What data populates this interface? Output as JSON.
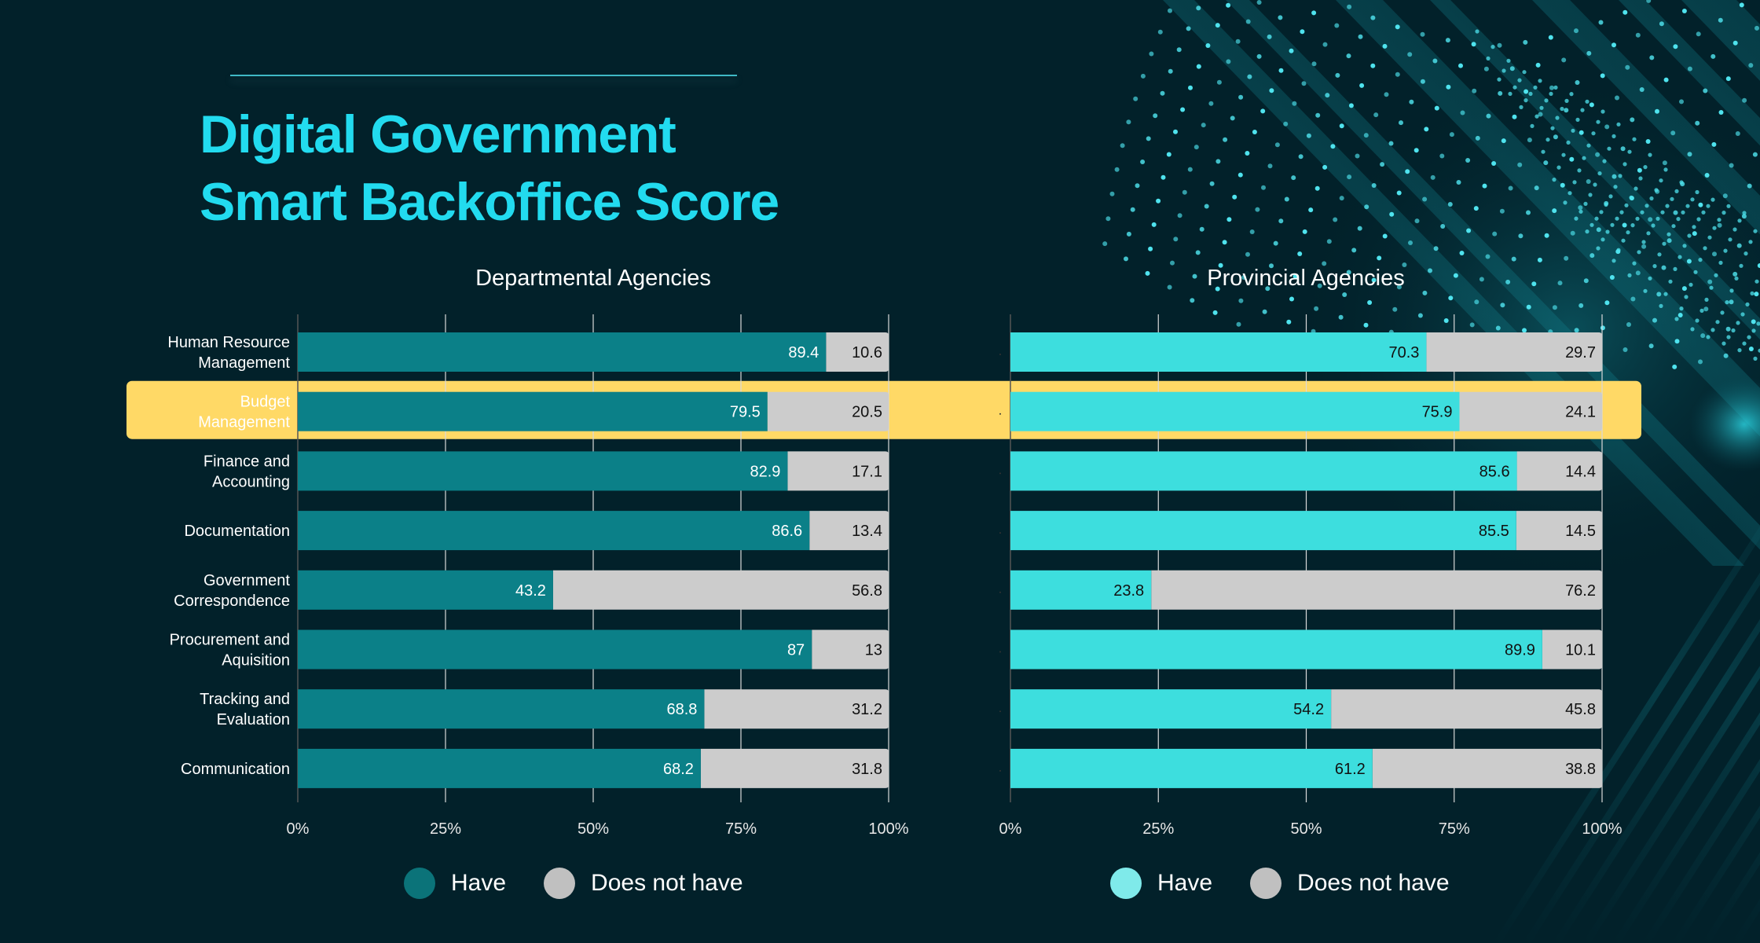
{
  "title": {
    "line1": "Digital Government",
    "line2": "Smart Backoffice Score"
  },
  "colors": {
    "background": "#02212a",
    "title": "#22dbef",
    "highlight": "#ffd966",
    "gray": "#cccccc",
    "departmental_have": "#0b8088",
    "provincial_have": "#3ddede",
    "legend_departmental_have": "#0b7379",
    "legend_provincial_have": "#7feaea",
    "legend_does_not_have": "#c0c0c0"
  },
  "highlighted_category": "Budget Management",
  "chart_data": [
    {
      "type": "bar",
      "orientation": "horizontal",
      "stacked": "percent",
      "title": "Departmental Agencies",
      "categories": [
        "Human Resource Management",
        "Budget Management",
        "Finance and Accounting",
        "Documentation",
        "Government Correspondence",
        "Procurement and Aquisition",
        "Tracking and Evaluation",
        "Communication"
      ],
      "category_labels": [
        [
          "Human Resource",
          "Management"
        ],
        [
          "Budget",
          "Management"
        ],
        [
          "Finance and",
          "Accounting"
        ],
        [
          "Documentation"
        ],
        [
          "Government",
          "Correspondence"
        ],
        [
          "Procurement and",
          "Aquisition"
        ],
        [
          "Tracking and",
          "Evaluation"
        ],
        [
          "Communication"
        ]
      ],
      "series": [
        {
          "name": "Have",
          "values": [
            89.4,
            79.5,
            82.9,
            86.6,
            43.2,
            87,
            68.8,
            68.2
          ],
          "labels": [
            "89.4",
            "79.5",
            "82.9",
            "86.6",
            "43.2",
            "87",
            "68.8",
            "68.2"
          ]
        },
        {
          "name": "Does not have",
          "values": [
            10.6,
            20.5,
            17.1,
            13.4,
            56.8,
            13,
            31.2,
            31.8
          ],
          "labels": [
            "10.6",
            "20.5",
            "17.1",
            "13.4",
            "56.8",
            "13",
            "31.2",
            "31.8"
          ]
        }
      ],
      "xlim": [
        0,
        100
      ],
      "xticks": [
        "0%",
        "25%",
        "50%",
        "75%",
        "100%"
      ],
      "grid": true,
      "legend": {
        "position": "bottom",
        "entries": [
          "Have",
          "Does not have"
        ]
      }
    },
    {
      "type": "bar",
      "orientation": "horizontal",
      "stacked": "percent",
      "title": "Provincial Agencies",
      "categories": [
        "Human Resource Management",
        "Budget Management",
        "Finance and Accounting",
        "Documentation",
        "Government Correspondence",
        "Procurement and Aquisition",
        "Tracking and Evaluation",
        "Communication"
      ],
      "category_labels": [],
      "series": [
        {
          "name": "Have",
          "values": [
            70.3,
            75.9,
            85.6,
            85.5,
            23.8,
            89.9,
            54.2,
            61.2
          ],
          "labels": [
            "70.3",
            "75.9",
            "85.6",
            "85.5",
            "23.8",
            "89.9",
            "54.2",
            "61.2"
          ]
        },
        {
          "name": "Does not have",
          "values": [
            29.7,
            24.1,
            14.4,
            14.5,
            76.2,
            10.1,
            45.8,
            38.8
          ],
          "labels": [
            "29.7",
            "24.1",
            "14.4",
            "14.5",
            "76.2",
            "10.1",
            "45.8",
            "38.8"
          ]
        }
      ],
      "xlim": [
        0,
        100
      ],
      "xticks": [
        "0%",
        "25%",
        "50%",
        "75%",
        "100%"
      ],
      "grid": true,
      "legend": {
        "position": "bottom",
        "entries": [
          "Have",
          "Does not have"
        ]
      }
    }
  ]
}
